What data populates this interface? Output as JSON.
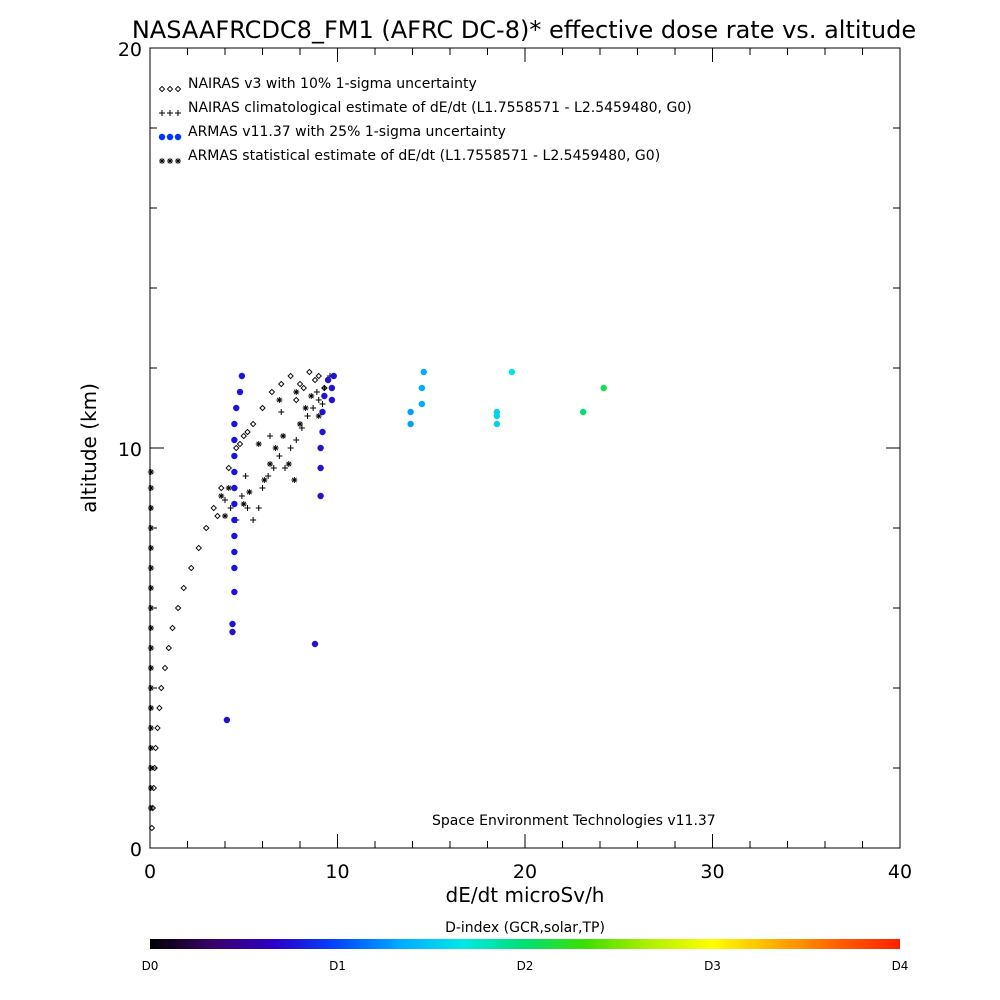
{
  "chart_data": {
    "type": "scatter",
    "title": "NASAAFRCDC8_FM1 (AFRC DC-8)* effective dose rate vs. altitude",
    "xlabel": "dE/dt microSv/h",
    "ylabel": "altitude (km)",
    "xlim": [
      0,
      40
    ],
    "ylim": [
      0,
      20
    ],
    "x_ticks": [
      "0",
      "10",
      "20",
      "30",
      "40"
    ],
    "y_ticks": [
      "0",
      "10",
      "20"
    ],
    "legend_position": "top-left",
    "credit": "Space Environment Technologies v11.37",
    "series": [
      {
        "name": "NAIRAS v3 with 10% 1-sigma uncertainty",
        "marker": "diamond",
        "color": "#000000",
        "points": [
          [
            0.1,
            0.5
          ],
          [
            0.15,
            1.0
          ],
          [
            0.2,
            1.5
          ],
          [
            0.25,
            2.0
          ],
          [
            0.3,
            2.5
          ],
          [
            0.4,
            3.0
          ],
          [
            0.5,
            3.5
          ],
          [
            0.6,
            4.0
          ],
          [
            0.8,
            4.5
          ],
          [
            1.0,
            5.0
          ],
          [
            1.2,
            5.5
          ],
          [
            1.5,
            6.0
          ],
          [
            1.8,
            6.5
          ],
          [
            2.2,
            7.0
          ],
          [
            2.6,
            7.5
          ],
          [
            3.0,
            8.0
          ],
          [
            3.4,
            8.5
          ],
          [
            3.8,
            9.0
          ],
          [
            4.2,
            9.5
          ],
          [
            4.6,
            10.0
          ],
          [
            5.0,
            10.3
          ],
          [
            5.5,
            10.6
          ],
          [
            6.0,
            11.0
          ],
          [
            6.5,
            11.4
          ],
          [
            7.0,
            11.6
          ],
          [
            7.5,
            11.8
          ],
          [
            8.0,
            11.6
          ],
          [
            8.5,
            11.9
          ],
          [
            9.0,
            11.8
          ],
          [
            9.3,
            11.5
          ],
          [
            3.6,
            8.3
          ],
          [
            4.8,
            10.1
          ],
          [
            5.2,
            10.4
          ],
          [
            7.8,
            11.2
          ],
          [
            8.2,
            11.5
          ],
          [
            8.8,
            11.7
          ]
        ]
      },
      {
        "name": "NAIRAS climatological estimate of dE/dt (L1.7558571 - L2.5459480, G0)",
        "marker": "plus",
        "color": "#000000",
        "points": [
          [
            4.0,
            8.7
          ],
          [
            4.3,
            8.5
          ],
          [
            4.6,
            8.2
          ],
          [
            4.9,
            8.8
          ],
          [
            5.2,
            8.5
          ],
          [
            5.5,
            8.2
          ],
          [
            5.8,
            8.5
          ],
          [
            6.0,
            9.0
          ],
          [
            6.3,
            9.3
          ],
          [
            6.6,
            9.5
          ],
          [
            6.9,
            9.8
          ],
          [
            7.2,
            9.5
          ],
          [
            7.5,
            10.0
          ],
          [
            7.8,
            10.2
          ],
          [
            8.1,
            10.5
          ],
          [
            8.4,
            10.8
          ],
          [
            8.7,
            11.0
          ],
          [
            9.0,
            11.2
          ],
          [
            9.3,
            11.5
          ],
          [
            9.6,
            11.8
          ],
          [
            5.1,
            9.3
          ],
          [
            6.4,
            10.3
          ],
          [
            7.0,
            10.9
          ],
          [
            8.9,
            11.4
          ],
          [
            9.2,
            11.1
          ]
        ]
      },
      {
        "name": "ARMAS v11.37 with 25% 1-sigma uncertainty",
        "marker": "filled-circle",
        "color": "#0033ff",
        "points": [
          [
            4.1,
            3.2,
            0.75
          ],
          [
            8.8,
            5.1,
            0.75
          ],
          [
            4.4,
            5.4,
            0.75
          ],
          [
            4.4,
            5.6,
            0.75
          ],
          [
            4.5,
            6.4,
            0.75
          ],
          [
            4.5,
            7.0,
            0.75
          ],
          [
            4.5,
            7.4,
            0.75
          ],
          [
            4.5,
            7.8,
            0.75
          ],
          [
            4.5,
            8.2,
            0.75
          ],
          [
            4.5,
            8.6,
            0.75
          ],
          [
            4.5,
            9.0,
            0.75
          ],
          [
            4.5,
            9.4,
            0.75
          ],
          [
            4.5,
            9.8,
            0.75
          ],
          [
            4.5,
            10.2,
            0.75
          ],
          [
            4.5,
            10.6,
            0.75
          ],
          [
            4.6,
            11.0,
            0.75
          ],
          [
            4.8,
            11.4,
            0.75
          ],
          [
            4.9,
            11.8,
            0.75
          ],
          [
            9.1,
            8.8,
            0.75
          ],
          [
            9.1,
            9.5,
            0.75
          ],
          [
            9.1,
            10.0,
            0.75
          ],
          [
            9.2,
            10.4,
            0.75
          ],
          [
            9.2,
            10.9,
            0.75
          ],
          [
            9.3,
            11.3,
            0.75
          ],
          [
            9.5,
            11.7,
            0.75
          ],
          [
            9.7,
            11.5,
            0.75
          ],
          [
            9.7,
            11.2,
            0.75
          ],
          [
            9.8,
            11.8,
            0.75
          ],
          [
            13.9,
            10.6,
            1.3
          ],
          [
            13.9,
            10.9,
            1.3
          ],
          [
            14.5,
            11.1,
            1.35
          ],
          [
            14.5,
            11.5,
            1.35
          ],
          [
            14.6,
            11.9,
            1.35
          ],
          [
            18.5,
            10.6,
            1.55
          ],
          [
            18.5,
            10.8,
            1.55
          ],
          [
            18.5,
            10.9,
            1.55
          ],
          [
            19.3,
            11.9,
            1.65
          ],
          [
            23.1,
            10.9,
            2.0
          ],
          [
            24.2,
            11.5,
            2.1
          ]
        ]
      },
      {
        "name": "ARMAS statistical estimate of dE/dt (L1.7558571 - L2.5459480, G0)",
        "marker": "asterisk",
        "color": "#000000",
        "points": [
          [
            0.05,
            9.4
          ],
          [
            0.05,
            9.0
          ],
          [
            0.05,
            8.5
          ],
          [
            0.05,
            8.0
          ],
          [
            0.05,
            7.5
          ],
          [
            0.05,
            7.0
          ],
          [
            0.05,
            6.5
          ],
          [
            0.05,
            6.0
          ],
          [
            0.05,
            5.5
          ],
          [
            0.05,
            5.0
          ],
          [
            0.05,
            4.5
          ],
          [
            0.05,
            4.0
          ],
          [
            0.05,
            3.5
          ],
          [
            0.05,
            3.0
          ],
          [
            0.05,
            2.5
          ],
          [
            0.05,
            2.0
          ],
          [
            0.05,
            1.5
          ],
          [
            0.05,
            1.0
          ],
          [
            3.8,
            8.8
          ],
          [
            4.0,
            8.3
          ],
          [
            4.2,
            9.0
          ],
          [
            5.0,
            8.6
          ],
          [
            5.3,
            8.9
          ],
          [
            6.1,
            9.2
          ],
          [
            6.4,
            9.6
          ],
          [
            6.7,
            10.0
          ],
          [
            7.1,
            10.3
          ],
          [
            7.4,
            9.6
          ],
          [
            7.7,
            9.2
          ],
          [
            8.0,
            10.6
          ],
          [
            8.3,
            11.0
          ],
          [
            8.6,
            11.3
          ],
          [
            9.0,
            10.8
          ],
          [
            5.8,
            10.1
          ],
          [
            6.9,
            11.2
          ],
          [
            7.8,
            11.4
          ]
        ]
      }
    ],
    "colorbar": {
      "title": "D-index (GCR,solar,TP)",
      "ticks": [
        {
          "label": "D0",
          "value": 0
        },
        {
          "label": "D1",
          "value": 1
        },
        {
          "label": "D2",
          "value": 2
        },
        {
          "label": "D3",
          "value": 3
        },
        {
          "label": "D4",
          "value": 4
        }
      ],
      "colors": [
        "#000000",
        "#3a006a",
        "#2a00c8",
        "#0048ff",
        "#00aaff",
        "#00e8e8",
        "#00e070",
        "#40e000",
        "#b0f000",
        "#ffff00",
        "#ffb000",
        "#ff6000",
        "#ff2000"
      ]
    }
  }
}
